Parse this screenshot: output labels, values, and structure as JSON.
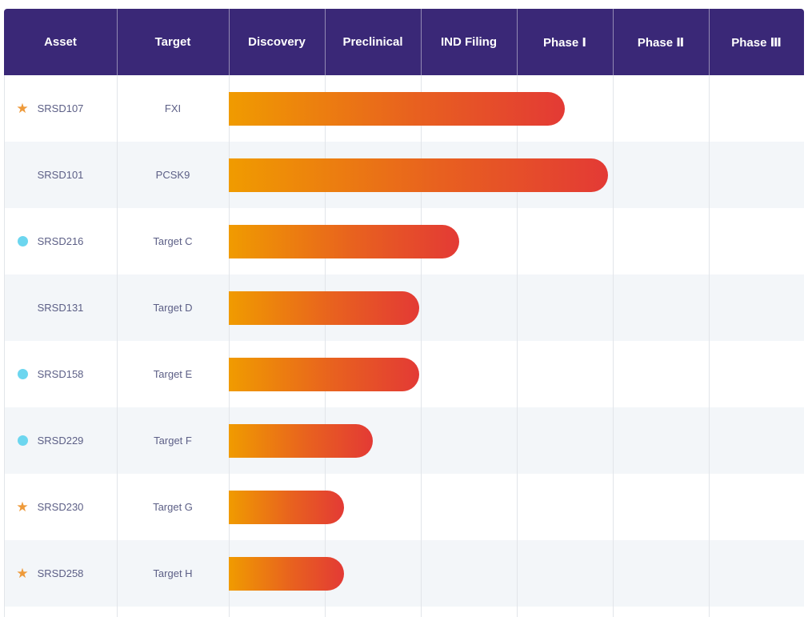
{
  "chart_data": {
    "type": "bar",
    "orientation": "horizontal",
    "title": "",
    "columns": [
      "Asset",
      "Target",
      "Discovery",
      "Preclinical",
      "IND Filing",
      "Phase Ⅰ",
      "Phase Ⅱ",
      "Phase Ⅲ"
    ],
    "stage_axis": [
      "Discovery",
      "Preclinical",
      "IND Filing",
      "Phase Ⅰ",
      "Phase Ⅱ",
      "Phase Ⅲ"
    ],
    "xlim": [
      0,
      6
    ],
    "rows": [
      {
        "asset": "SRSD107",
        "target": "FXI",
        "marker": "star",
        "progress": 3.5
      },
      {
        "asset": "SRSD101",
        "target": "PCSK9",
        "marker": "none",
        "progress": 3.95
      },
      {
        "asset": "SRSD216",
        "target": "Target C",
        "marker": "dot",
        "progress": 2.4
      },
      {
        "asset": "SRSD131",
        "target": "Target D",
        "marker": "none",
        "progress": 1.98
      },
      {
        "asset": "SRSD158",
        "target": "Target E",
        "marker": "dot",
        "progress": 1.98
      },
      {
        "asset": "SRSD229",
        "target": "Target F",
        "marker": "dot",
        "progress": 1.5
      },
      {
        "asset": "SRSD230",
        "target": "Target G",
        "marker": "star",
        "progress": 1.2
      },
      {
        "asset": "SRSD258",
        "target": "Target H",
        "marker": "star",
        "progress": 1.2
      }
    ]
  },
  "colors": {
    "header_bg": "#3a2877",
    "bar_start": "#f09b00",
    "bar_end": "#e33a35",
    "star": "#ee9a3a",
    "dot": "#6cd6ef",
    "row_alt": "#f3f6f9"
  }
}
